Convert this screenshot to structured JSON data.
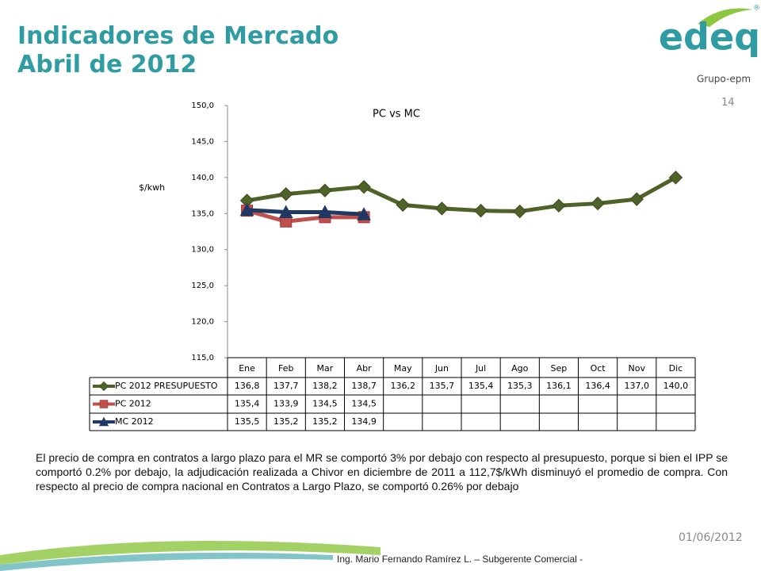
{
  "header": {
    "title": "Indicadores de Mercado",
    "subtitle": "Abril de 2012"
  },
  "logo": {
    "brand": "edeq",
    "registered": "®",
    "group": "Grupo-epm"
  },
  "page_number": "14",
  "chart_data": {
    "type": "line",
    "title": "PC vs MC",
    "y_label": "$/kwh",
    "categories": [
      "Ene",
      "Feb",
      "Mar",
      "Abr",
      "May",
      "Jun",
      "Jul",
      "Ago",
      "Sep",
      "Oct",
      "Nov",
      "Dic"
    ],
    "ylim": [
      115,
      150
    ],
    "yticks": [
      {
        "value": 115,
        "label": "115,0"
      },
      {
        "value": 120,
        "label": "120,0"
      },
      {
        "value": 125,
        "label": "125,0"
      },
      {
        "value": 130,
        "label": "130,0"
      },
      {
        "value": 135,
        "label": "135,0"
      },
      {
        "value": 140,
        "label": "140,0"
      },
      {
        "value": 145,
        "label": "145,0"
      },
      {
        "value": 150,
        "label": "150,0"
      }
    ],
    "grid": false,
    "series": [
      {
        "name": "PC 2012 PRESUPUESTO",
        "color": "#4f6228",
        "marker": "diamond",
        "values": [
          136.8,
          137.7,
          138.2,
          138.7,
          136.2,
          135.7,
          135.4,
          135.3,
          136.1,
          136.4,
          137.0,
          140.0
        ],
        "value_labels": [
          "136,8",
          "137,7",
          "138,2",
          "138,7",
          "136,2",
          "135,7",
          "135,4",
          "135,3",
          "136,1",
          "136,4",
          "137,0",
          "140,0"
        ]
      },
      {
        "name": "PC 2012",
        "color": "#c0504d",
        "marker": "square",
        "values": [
          135.4,
          133.9,
          134.5,
          134.5,
          null,
          null,
          null,
          null,
          null,
          null,
          null,
          null
        ],
        "value_labels": [
          "135,4",
          "133,9",
          "134,5",
          "134,5",
          null,
          null,
          null,
          null,
          null,
          null,
          null,
          null
        ]
      },
      {
        "name": "MC 2012",
        "color": "#1f3864",
        "marker": "triangle",
        "values": [
          135.5,
          135.2,
          135.2,
          134.9,
          null,
          null,
          null,
          null,
          null,
          null,
          null,
          null
        ],
        "value_labels": [
          "135,5",
          "135,2",
          "135,2",
          "134,9",
          null,
          null,
          null,
          null,
          null,
          null,
          null,
          null
        ]
      }
    ]
  },
  "paragraph": "El precio de compra en contratos a largo plazo para el MR se comportó 3% por debajo con respecto al presupuesto, porque si bien el IPP se comportó 0.2% por debajo, la adjudicación realizada a Chivor en diciembre de 2011 a 112,7$/kWh disminuyó el promedio de compra. Con respecto al precio de compra nacional en Contratos a Largo Plazo, se comportó 0.26% por debajo",
  "date": "01/06/2012",
  "footer": "Ing. Mario Fernando Ramírez L. – Subgerente Comercial -"
}
